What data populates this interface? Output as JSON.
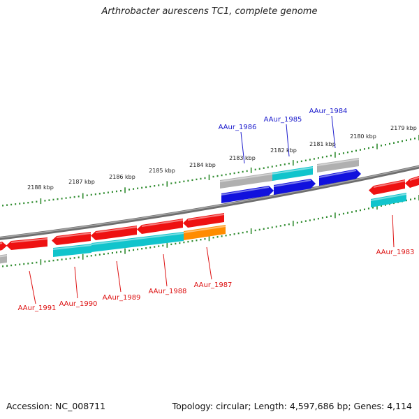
{
  "title": "Arthrobacter aurescens TC1, complete genome",
  "footer": {
    "accession": "Accession: NC_008711",
    "summary": "Topology: circular; Length: 4,597,686 bp; Genes: 4,114"
  },
  "colors": {
    "backbone": "#808080",
    "tick": "#2e8b2e",
    "gene_red": "#ee1111",
    "gene_cyan": "#11c4cc",
    "gene_blue": "#1111dd",
    "gene_orange": "#ff8c00",
    "gene_gray": "#b0b0b0",
    "label_blue": "#1a1acc",
    "label_red": "#dd1111"
  },
  "ruler": {
    "unit": "kbp",
    "labels": [
      {
        "kbp": 2179,
        "text": "2179 kbp"
      },
      {
        "kbp": 2180,
        "text": "2180 kbp"
      },
      {
        "kbp": 2181,
        "text": "2181 kbp"
      },
      {
        "kbp": 2182,
        "text": "2182 kbp"
      },
      {
        "kbp": 2183,
        "text": "2183 kbp"
      },
      {
        "kbp": 2184,
        "text": "2184 kbp"
      },
      {
        "kbp": 2185,
        "text": "2185 kbp"
      },
      {
        "kbp": 2186,
        "text": "2186 kbp"
      },
      {
        "kbp": 2187,
        "text": "2187 kbp"
      },
      {
        "kbp": 2188,
        "text": "2188 kbp"
      }
    ]
  },
  "gene_labels": [
    {
      "name": "AAur_1984",
      "strand": "plus"
    },
    {
      "name": "AAur_1985",
      "strand": "plus"
    },
    {
      "name": "AAur_1986",
      "strand": "plus"
    },
    {
      "name": "AAur_1983",
      "strand": "minus"
    },
    {
      "name": "AAur_1987",
      "strand": "minus"
    },
    {
      "name": "AAur_1988",
      "strand": "minus"
    },
    {
      "name": "AAur_1989",
      "strand": "minus"
    },
    {
      "name": "AAur_1990",
      "strand": "minus"
    },
    {
      "name": "AAur_1991",
      "strand": "minus"
    }
  ]
}
